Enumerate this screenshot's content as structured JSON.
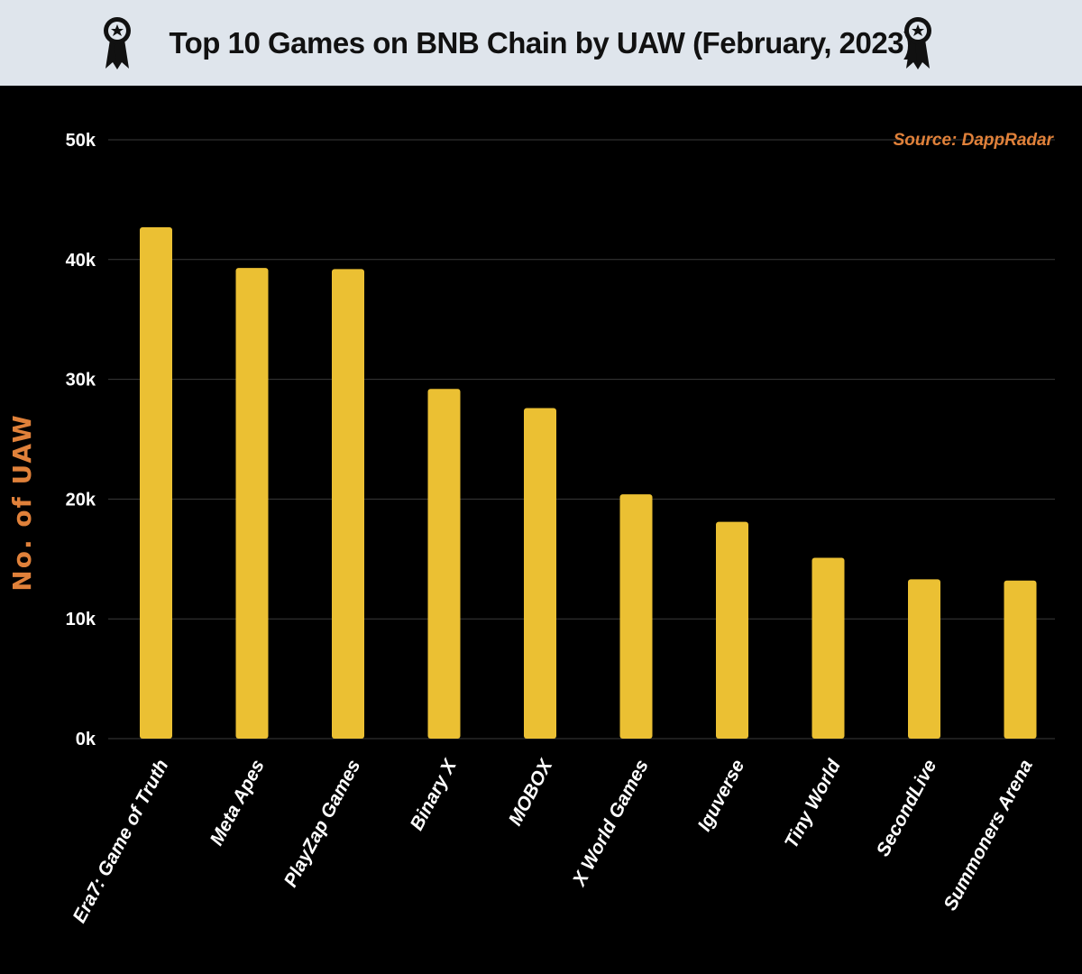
{
  "chart_data": {
    "type": "bar",
    "title": "Top 10 Games on BNB Chain by UAW (February, 2023)",
    "ylabel": "No. of UAW",
    "xlabel": "",
    "source": "Source: DappRadar",
    "categories": [
      "Era7: Game of Truth",
      "Meta Apes",
      "PlayZap Games",
      "Binary X",
      "MOBOX",
      "X World Games",
      "Iguverse",
      "Tiny World",
      "SecondLive",
      "Summoners Arena"
    ],
    "values": [
      42700,
      39300,
      39200,
      29200,
      27600,
      20400,
      18100,
      15100,
      13300,
      13200
    ],
    "ylim": [
      0,
      50000
    ],
    "yticks": [
      0,
      10000,
      20000,
      30000,
      40000,
      50000
    ],
    "ytick_labels": [
      "0k",
      "10k",
      "20k",
      "30k",
      "40k",
      "50k"
    ],
    "grid": true,
    "colors": {
      "bar": "#ebc033",
      "background": "#000000",
      "header": "#dfe5ec",
      "accent": "#e0813a",
      "grid": "#3a3a3a"
    }
  },
  "header": {
    "badge_icon": "award-ribbon-icon"
  }
}
